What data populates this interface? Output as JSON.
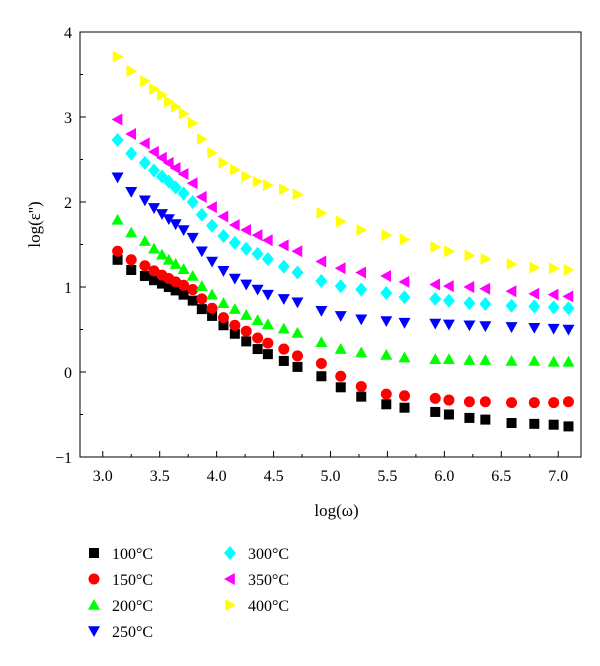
{
  "chart_data": {
    "type": "scatter",
    "xlabel": "log(ω)",
    "ylabel": "log(ε'')",
    "xlim": [
      2.8,
      7.2
    ],
    "ylim": [
      -1,
      4
    ],
    "xticks": [
      3.0,
      3.5,
      4.0,
      4.5,
      5.0,
      5.5,
      6.0,
      6.5,
      7.0
    ],
    "xtick_labels": [
      "3.0",
      "3.5",
      "4.0",
      "4.5",
      "5.0",
      "5.5",
      "6.0",
      "6.5",
      "7.0"
    ],
    "yticks": [
      -1,
      0,
      1,
      2,
      3,
      4
    ],
    "ytick_labels": [
      "−1",
      "0",
      "1",
      "2",
      "3",
      "4"
    ],
    "grid": false,
    "legend_position": "bottom",
    "x": [
      3.13,
      3.25,
      3.37,
      3.45,
      3.52,
      3.58,
      3.64,
      3.71,
      3.79,
      3.87,
      3.96,
      4.06,
      4.16,
      4.26,
      4.36,
      4.45,
      4.59,
      4.71,
      4.92,
      5.09,
      5.27,
      5.49,
      5.65,
      5.92,
      6.04,
      6.22,
      6.36,
      6.59,
      6.79,
      6.96,
      7.09
    ],
    "series": [
      {
        "name": "100°C",
        "marker": "square",
        "color": "#000000",
        "values": [
          1.32,
          1.2,
          1.13,
          1.08,
          1.04,
          1.0,
          0.96,
          0.91,
          0.84,
          0.74,
          0.66,
          0.55,
          0.45,
          0.36,
          0.27,
          0.21,
          0.13,
          0.06,
          -0.05,
          -0.18,
          -0.29,
          -0.38,
          -0.42,
          -0.47,
          -0.5,
          -0.54,
          -0.56,
          -0.6,
          -0.61,
          -0.62,
          -0.64
        ]
      },
      {
        "name": "150°C",
        "marker": "circle",
        "color": "#ff0000",
        "values": [
          1.42,
          1.32,
          1.25,
          1.19,
          1.14,
          1.1,
          1.06,
          1.02,
          0.97,
          0.86,
          0.75,
          0.64,
          0.55,
          0.48,
          0.4,
          0.34,
          0.27,
          0.19,
          0.1,
          -0.05,
          -0.17,
          -0.26,
          -0.28,
          -0.31,
          -0.33,
          -0.35,
          -0.35,
          -0.36,
          -0.36,
          -0.36,
          -0.35
        ]
      },
      {
        "name": "200°C",
        "marker": "triangle-up",
        "color": "#00ff00",
        "values": [
          1.79,
          1.64,
          1.54,
          1.45,
          1.38,
          1.32,
          1.27,
          1.21,
          1.13,
          1.01,
          0.91,
          0.81,
          0.74,
          0.67,
          0.61,
          0.56,
          0.51,
          0.46,
          0.35,
          0.27,
          0.23,
          0.2,
          0.17,
          0.15,
          0.15,
          0.14,
          0.14,
          0.13,
          0.13,
          0.12,
          0.12
        ]
      },
      {
        "name": "250°C",
        "marker": "triangle-down",
        "color": "#0000ff",
        "values": [
          2.29,
          2.12,
          2.02,
          1.93,
          1.86,
          1.8,
          1.74,
          1.67,
          1.58,
          1.42,
          1.3,
          1.19,
          1.1,
          1.03,
          0.97,
          0.91,
          0.86,
          0.82,
          0.72,
          0.66,
          0.62,
          0.6,
          0.58,
          0.57,
          0.56,
          0.55,
          0.54,
          0.53,
          0.52,
          0.51,
          0.5
        ]
      },
      {
        "name": "300°C",
        "marker": "diamond",
        "color": "#00ffff",
        "values": [
          2.73,
          2.57,
          2.46,
          2.37,
          2.3,
          2.24,
          2.17,
          2.1,
          2.0,
          1.85,
          1.72,
          1.6,
          1.52,
          1.45,
          1.39,
          1.33,
          1.24,
          1.17,
          1.07,
          1.01,
          0.97,
          0.93,
          0.88,
          0.86,
          0.84,
          0.81,
          0.8,
          0.78,
          0.77,
          0.76,
          0.75
        ]
      },
      {
        "name": "350°C",
        "marker": "triangle-left",
        "color": "#ff00ff",
        "values": [
          2.97,
          2.8,
          2.69,
          2.59,
          2.52,
          2.46,
          2.4,
          2.33,
          2.22,
          2.06,
          1.94,
          1.83,
          1.73,
          1.67,
          1.61,
          1.55,
          1.49,
          1.42,
          1.3,
          1.22,
          1.17,
          1.13,
          1.06,
          1.03,
          1.01,
          1.0,
          0.98,
          0.95,
          0.92,
          0.91,
          0.89
        ]
      },
      {
        "name": "400°C",
        "marker": "triangle-right",
        "color": "#ffff00",
        "values": [
          3.71,
          3.54,
          3.42,
          3.33,
          3.26,
          3.18,
          3.12,
          3.04,
          2.93,
          2.74,
          2.58,
          2.46,
          2.38,
          2.3,
          2.24,
          2.2,
          2.15,
          2.09,
          1.87,
          1.77,
          1.67,
          1.61,
          1.56,
          1.47,
          1.42,
          1.37,
          1.33,
          1.27,
          1.23,
          1.22,
          1.2
        ]
      }
    ]
  }
}
